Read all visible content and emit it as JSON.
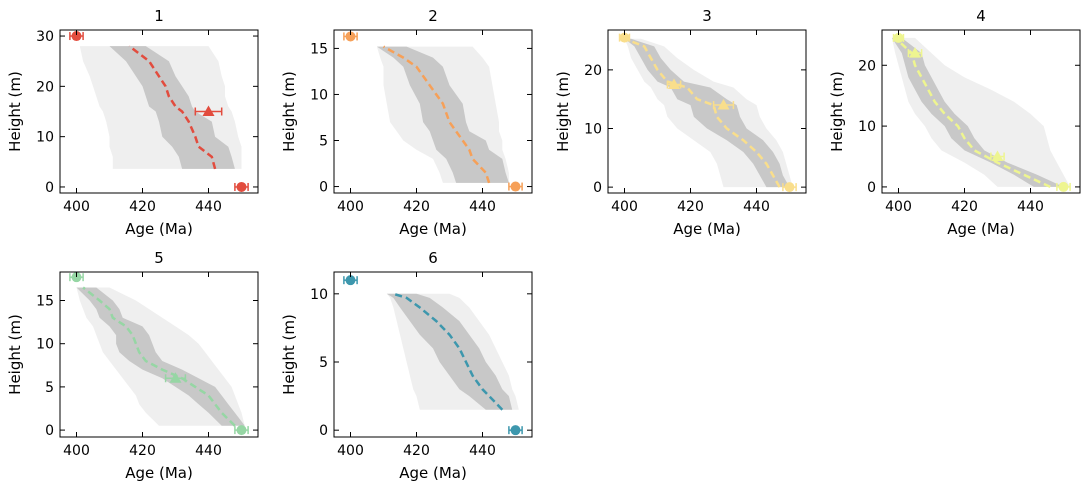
{
  "chart_data": [
    {
      "type": "line",
      "title": "1",
      "xlabel": "Age (Ma)",
      "ylabel": "Height (m)",
      "xlim": [
        395,
        455
      ],
      "ylim": [
        -1.2,
        31.2
      ],
      "xticks": [
        400,
        420,
        440
      ],
      "yticks": [
        0,
        10,
        20,
        30
      ],
      "color": "#e24c3e",
      "model": {
        "height": [
          3.6,
          6,
          8,
          10,
          13,
          15,
          16,
          18,
          20,
          22,
          25,
          28
        ],
        "median": [
          442,
          441,
          437,
          436,
          434,
          432,
          430,
          428,
          427,
          425,
          422,
          416
        ],
        "ci68_low": [
          432,
          431,
          429,
          426,
          425,
          424,
          422,
          421,
          420,
          418,
          415,
          410
        ],
        "ci68_high": [
          448,
          447,
          446,
          442,
          441,
          436,
          435,
          434,
          432,
          430,
          428,
          421
        ],
        "ci95_low": [
          411,
          411,
          410,
          410,
          409,
          408,
          407,
          406,
          405,
          404,
          402,
          401
        ],
        "ci95_high": [
          450,
          450,
          450,
          449,
          448,
          447,
          446,
          445,
          445,
          444,
          443,
          440
        ]
      },
      "constraints": [
        {
          "height": 0,
          "age": 450,
          "err": 2,
          "marker": "circle"
        },
        {
          "height": 15,
          "age": 440,
          "err": 4,
          "marker": "triangle"
        },
        {
          "height": 30,
          "age": 400,
          "err": 2,
          "marker": "circle"
        }
      ]
    },
    {
      "type": "line",
      "title": "2",
      "xlabel": "Age (Ma)",
      "ylabel": "Height (m)",
      "xlim": [
        395,
        455
      ],
      "ylim": [
        -0.7,
        17.0
      ],
      "xticks": [
        400,
        420,
        440
      ],
      "yticks": [
        0,
        5,
        10,
        15
      ],
      "color": "#f6a058",
      "model": {
        "height": [
          0.4,
          1.5,
          3,
          4,
          5,
          6,
          7,
          9,
          11,
          13,
          14,
          15.2
        ],
        "median": [
          442,
          441,
          437,
          436,
          434,
          432,
          430,
          428,
          424,
          420,
          416,
          410
        ],
        "ci68_low": [
          432,
          431,
          429,
          426,
          425,
          424,
          422,
          421,
          418,
          416,
          413,
          408
        ],
        "ci68_high": [
          448,
          447,
          446,
          442,
          441,
          436,
          435,
          434,
          430,
          428,
          425,
          417
        ],
        "ci95_low": [
          428,
          427,
          425,
          420,
          416,
          414,
          412,
          411,
          410,
          410,
          409,
          408
        ],
        "ci95_high": [
          448,
          448,
          447,
          446,
          446,
          445,
          445,
          444,
          443,
          442,
          440,
          437
        ]
      },
      "constraints": [
        {
          "height": 0,
          "age": 450,
          "err": 2,
          "marker": "circle"
        },
        {
          "height": 16.3,
          "age": 400,
          "err": 2,
          "marker": "circle"
        }
      ]
    },
    {
      "type": "line",
      "title": "3",
      "xlabel": "Age (Ma)",
      "ylabel": "Height (m)",
      "xlim": [
        395,
        455
      ],
      "ylim": [
        -1.0,
        26.8
      ],
      "xticks": [
        400,
        420,
        440
      ],
      "yticks": [
        0,
        10,
        20
      ],
      "color": "#f9de8c",
      "model": {
        "height": [
          0,
          2,
          4,
          6,
          8,
          10,
          12,
          14,
          15,
          17,
          18,
          20,
          22,
          24,
          25.3
        ],
        "median": [
          447,
          445,
          443,
          440,
          436,
          431,
          428,
          427,
          422,
          419,
          413,
          410,
          408,
          406,
          400
        ],
        "ci68_low": [
          443,
          441,
          439,
          436,
          431,
          425,
          421,
          420,
          416,
          414,
          410,
          407,
          405,
          403,
          400
        ],
        "ci68_high": [
          450,
          448,
          447,
          445,
          442,
          437,
          435,
          434,
          431,
          426,
          418,
          414,
          411,
          409,
          402
        ],
        "ci95_low": [
          430,
          429,
          428,
          426,
          421,
          416,
          413,
          412,
          410,
          408,
          406,
          404,
          402,
          401,
          400
        ],
        "ci95_high": [
          451,
          450,
          449,
          448,
          446,
          443,
          441,
          440,
          437,
          433,
          427,
          421,
          416,
          412,
          405
        ]
      },
      "constraints": [
        {
          "height": 0,
          "age": 450,
          "err": 2,
          "marker": "circle"
        },
        {
          "height": 14,
          "age": 430,
          "err": 3,
          "marker": "triangle"
        },
        {
          "height": 17.5,
          "age": 415,
          "err": 2,
          "marker": "triangle"
        },
        {
          "height": 25.5,
          "age": 400,
          "err": 1.5,
          "marker": "circle"
        }
      ]
    },
    {
      "type": "line",
      "title": "4",
      "xlabel": "Age (Ma)",
      "ylabel": "Height (m)",
      "xlim": [
        395,
        455
      ],
      "ylim": [
        -1.0,
        25.8
      ],
      "xticks": [
        400,
        420,
        440
      ],
      "yticks": [
        0,
        10,
        20
      ],
      "color": "#eef590",
      "model": {
        "height": [
          0,
          2,
          4,
          6,
          8,
          10,
          12,
          14,
          16,
          18,
          20,
          22,
          24.5
        ],
        "median": [
          446,
          438,
          430,
          423,
          420,
          418,
          414,
          411,
          409,
          407,
          405,
          404,
          399
        ],
        "ci68_low": [
          441,
          435,
          428,
          420,
          416,
          414,
          410,
          407,
          405,
          403,
          402,
          401,
          398
        ],
        "ci68_high": [
          450,
          442,
          433,
          426,
          423,
          421,
          417,
          414,
          412,
          410,
          408,
          407,
          401
        ],
        "ci95_low": [
          430,
          426,
          420,
          413,
          410,
          408,
          405,
          403,
          402,
          401,
          400,
          399,
          398
        ],
        "ci95_high": [
          452,
          450,
          448,
          446,
          445,
          444,
          440,
          435,
          428,
          420,
          414,
          410,
          405
        ]
      },
      "constraints": [
        {
          "height": 0,
          "age": 450,
          "err": 2,
          "marker": "circle"
        },
        {
          "height": 5,
          "age": 430,
          "err": 2,
          "marker": "triangle"
        },
        {
          "height": 22,
          "age": 405,
          "err": 2,
          "marker": "triangle"
        },
        {
          "height": 24.5,
          "age": 400,
          "err": 1.5,
          "marker": "circle"
        }
      ]
    },
    {
      "type": "line",
      "title": "5",
      "xlabel": "Age (Ma)",
      "ylabel": "Height (m)",
      "xlim": [
        395,
        455
      ],
      "ylim": [
        -0.8,
        18.3
      ],
      "xticks": [
        400,
        420,
        440
      ],
      "yticks": [
        0,
        5,
        10,
        15
      ],
      "color": "#96d6a4",
      "model": {
        "height": [
          0.5,
          2,
          3,
          4,
          5,
          6,
          7,
          8,
          9,
          10,
          11,
          12,
          13,
          14,
          15,
          16.5
        ],
        "median": [
          448,
          444,
          442,
          440,
          436,
          432,
          426,
          421,
          419,
          418,
          417,
          415,
          411,
          410,
          407,
          402
        ],
        "ci68_low": [
          444,
          440,
          437,
          434,
          430,
          426,
          420,
          416,
          413,
          412,
          412,
          410,
          407,
          406,
          404,
          400
        ],
        "ci68_high": [
          451,
          448,
          446,
          444,
          442,
          437,
          432,
          426,
          424,
          423,
          422,
          420,
          414,
          413,
          411,
          406
        ],
        "ci95_low": [
          425,
          421,
          419,
          418,
          416,
          414,
          412,
          410,
          408,
          407,
          406,
          405,
          403,
          402,
          401,
          400
        ],
        "ci95_high": [
          451,
          450,
          449,
          448,
          447,
          445,
          443,
          441,
          439,
          437,
          434,
          430,
          426,
          422,
          418,
          410
        ]
      },
      "constraints": [
        {
          "height": 0,
          "age": 450,
          "err": 2,
          "marker": "circle"
        },
        {
          "height": 6,
          "age": 430,
          "err": 3,
          "marker": "triangle"
        },
        {
          "height": 17.7,
          "age": 400,
          "err": 2,
          "marker": "circle"
        }
      ]
    },
    {
      "type": "line",
      "title": "6",
      "xlabel": "Age (Ma)",
      "ylabel": "Height (m)",
      "xlim": [
        395,
        455
      ],
      "ylim": [
        -0.5,
        11.6
      ],
      "xticks": [
        400,
        420,
        440
      ],
      "yticks": [
        0,
        5,
        10
      ],
      "color": "#3d97ad",
      "model": {
        "height": [
          1.5,
          2.5,
          3,
          4,
          5,
          6,
          7,
          8,
          9,
          9.7,
          10
        ],
        "median": [
          446,
          442,
          440,
          437,
          435,
          433,
          430,
          426,
          421,
          417,
          413
        ],
        "ci68_low": [
          441,
          436,
          433,
          430,
          427,
          425,
          421,
          418,
          415,
          413,
          411
        ],
        "ci68_high": [
          449,
          448,
          446,
          444,
          441,
          439,
          436,
          433,
          428,
          424,
          420
        ],
        "ci95_low": [
          421,
          420,
          419,
          418,
          417,
          416,
          415,
          414,
          413,
          412,
          411
        ],
        "ci95_high": [
          451,
          450,
          449,
          448,
          446,
          444,
          442,
          439,
          436,
          433,
          430
        ]
      },
      "constraints": [
        {
          "height": 0,
          "age": 450,
          "err": 2,
          "marker": "circle"
        },
        {
          "height": 11,
          "age": 400,
          "err": 2,
          "marker": "circle"
        }
      ]
    }
  ]
}
